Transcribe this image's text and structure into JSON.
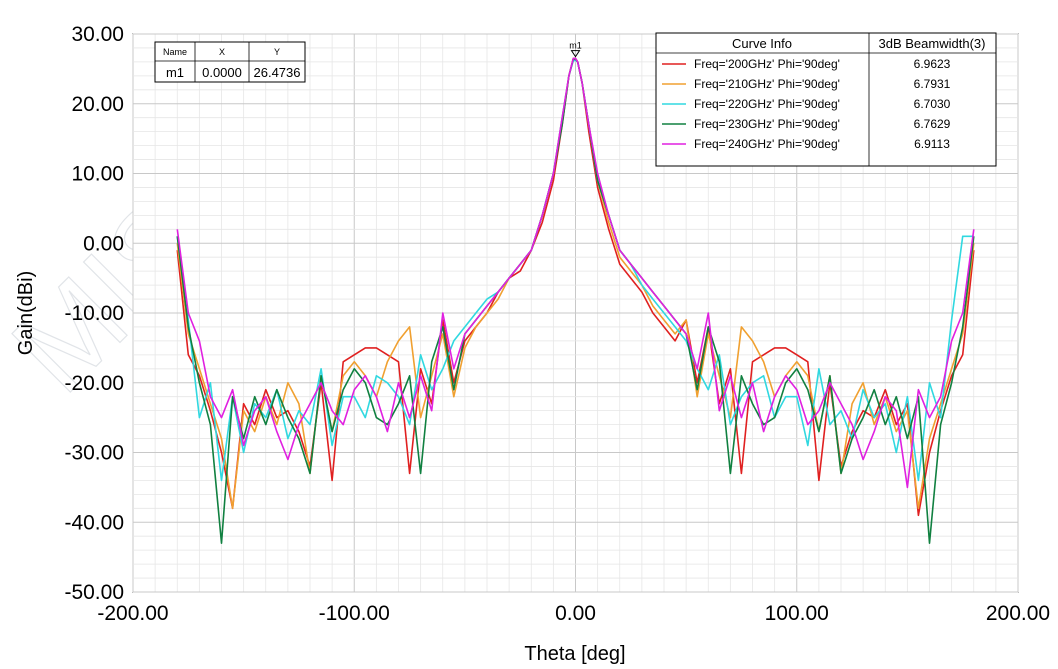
{
  "chart_data": {
    "type": "line",
    "title": "",
    "xlabel": "Theta [deg]",
    "ylabel": "Gain(dBi)",
    "xlim": [
      -200,
      200
    ],
    "ylim": [
      -50,
      30
    ],
    "x_ticks": [
      "-200.00",
      "-100.00",
      "0.00",
      "100.00",
      "200.00"
    ],
    "y_ticks": [
      "30.00",
      "20.00",
      "10.00",
      "0.00",
      "-10.00",
      "-20.00",
      "-30.00",
      "-40.00",
      "-50.00"
    ],
    "grid": true,
    "legend_position": "top-right",
    "legend": {
      "header_curve": "Curve Info",
      "header_value": "3dB Beamwidth(3)"
    },
    "series": [
      {
        "name": "Freq='200GHz' Phi='90deg'",
        "beamwidth": "6.9623",
        "color": "#e02020",
        "x": [
          -180,
          -175,
          -170,
          -165,
          -160,
          -155,
          -150,
          -145,
          -140,
          -135,
          -130,
          -125,
          -120,
          -115,
          -110,
          -105,
          -100,
          -95,
          -90,
          -85,
          -80,
          -75,
          -70,
          -65,
          -60,
          -55,
          -50,
          -45,
          -40,
          -35,
          -30,
          -25,
          -20,
          -15,
          -10,
          -6,
          -3,
          -1,
          0,
          1,
          3,
          6,
          10,
          15,
          20,
          25,
          30,
          35,
          40,
          45,
          50,
          55,
          60,
          65,
          70,
          75,
          80,
          85,
          90,
          95,
          100,
          105,
          110,
          115,
          120,
          125,
          130,
          135,
          140,
          145,
          150,
          155,
          160,
          165,
          170,
          175,
          180
        ],
        "y": [
          -1,
          -16,
          -19,
          -24,
          -30,
          -38,
          -23,
          -26,
          -21,
          -25,
          -24,
          -27,
          -32,
          -20,
          -34,
          -17,
          -16,
          -15,
          -15,
          -16,
          -17,
          -33,
          -18,
          -23,
          -11,
          -20,
          -14,
          -12,
          -10,
          -7,
          -5,
          -4,
          -1,
          3,
          9,
          17,
          24,
          26.5,
          26.5,
          26,
          23,
          16,
          8,
          2,
          -3,
          -5,
          -7,
          -10,
          -12,
          -14,
          -11,
          -20,
          -12,
          -23,
          -18,
          -33,
          -17,
          -16,
          -15,
          -15,
          -16,
          -17,
          -34,
          -20,
          -32,
          -27,
          -24,
          -25,
          -21,
          -26,
          -23,
          -39,
          -30,
          -24,
          -19,
          -16,
          -1
        ]
      },
      {
        "name": "Freq='210GHz' Phi='90deg'",
        "beamwidth": "6.7931",
        "color": "#f0a030",
        "x": [
          -180,
          -175,
          -170,
          -165,
          -160,
          -155,
          -150,
          -145,
          -140,
          -135,
          -130,
          -125,
          -120,
          -115,
          -110,
          -105,
          -100,
          -95,
          -90,
          -85,
          -80,
          -75,
          -70,
          -65,
          -60,
          -55,
          -50,
          -45,
          -40,
          -35,
          -30,
          -25,
          -20,
          -15,
          -10,
          -6,
          -3,
          -1,
          0,
          1,
          3,
          6,
          10,
          15,
          20,
          25,
          30,
          35,
          40,
          45,
          50,
          55,
          60,
          65,
          70,
          75,
          80,
          85,
          90,
          95,
          100,
          105,
          110,
          115,
          120,
          125,
          130,
          135,
          140,
          145,
          150,
          155,
          160,
          165,
          170,
          175,
          180
        ],
        "y": [
          0,
          -13,
          -18,
          -23,
          -28,
          -38,
          -24,
          -27,
          -22,
          -26,
          -20,
          -23,
          -33,
          -19,
          -27,
          -19,
          -17,
          -19,
          -22,
          -17,
          -14,
          -12,
          -25,
          -19,
          -13,
          -22,
          -15,
          -12,
          -10,
          -8,
          -5,
          -3,
          -1,
          4,
          10,
          18,
          24,
          26.3,
          26.3,
          26,
          23,
          17,
          9,
          3,
          -2,
          -4,
          -6,
          -9,
          -11,
          -13,
          -11,
          -22,
          -13,
          -19,
          -25,
          -12,
          -14,
          -17,
          -22,
          -19,
          -17,
          -19,
          -27,
          -19,
          -33,
          -23,
          -20,
          -26,
          -22,
          -27,
          -24,
          -38,
          -28,
          -23,
          -18,
          -13,
          0
        ]
      },
      {
        "name": "Freq='220GHz' Phi='90deg'",
        "beamwidth": "6.7030",
        "color": "#30d8e0",
        "x": [
          -180,
          -175,
          -170,
          -165,
          -160,
          -155,
          -150,
          -145,
          -140,
          -135,
          -130,
          -125,
          -120,
          -115,
          -110,
          -105,
          -100,
          -95,
          -90,
          -85,
          -80,
          -75,
          -70,
          -65,
          -60,
          -55,
          -50,
          -45,
          -40,
          -35,
          -30,
          -25,
          -20,
          -15,
          -10,
          -6,
          -3,
          -1,
          0,
          1,
          3,
          6,
          10,
          15,
          20,
          25,
          30,
          35,
          40,
          45,
          50,
          55,
          60,
          65,
          70,
          75,
          80,
          85,
          90,
          95,
          100,
          105,
          110,
          115,
          120,
          125,
          130,
          135,
          140,
          145,
          150,
          155,
          160,
          165,
          170,
          175,
          180
        ],
        "y": [
          1,
          -11,
          -25,
          -20,
          -34,
          -22,
          -30,
          -23,
          -25,
          -21,
          -28,
          -24,
          -26,
          -18,
          -29,
          -22,
          -22,
          -25,
          -19,
          -20,
          -22,
          -26,
          -16,
          -21,
          -18,
          -14,
          -12,
          -10,
          -8,
          -7,
          -5,
          -3,
          -1,
          4,
          10,
          18,
          24,
          26.2,
          26.2,
          26,
          23,
          17,
          9,
          4,
          -1,
          -3,
          -6,
          -8,
          -10,
          -12,
          -14,
          -18,
          -21,
          -16,
          -26,
          -22,
          -20,
          -19,
          -25,
          -22,
          -22,
          -29,
          -18,
          -26,
          -24,
          -28,
          -21,
          -25,
          -23,
          -30,
          -22,
          -34,
          -20,
          -25,
          -11,
          1,
          1
        ]
      },
      {
        "name": "Freq='230GHz' Phi='90deg'",
        "beamwidth": "6.7629",
        "color": "#108040",
        "x": [
          -180,
          -175,
          -170,
          -165,
          -160,
          -155,
          -150,
          -145,
          -140,
          -135,
          -130,
          -125,
          -120,
          -115,
          -110,
          -105,
          -100,
          -95,
          -90,
          -85,
          -80,
          -75,
          -70,
          -65,
          -60,
          -55,
          -50,
          -45,
          -40,
          -35,
          -30,
          -25,
          -20,
          -15,
          -10,
          -6,
          -3,
          -1,
          0,
          1,
          3,
          6,
          10,
          15,
          20,
          25,
          30,
          35,
          40,
          45,
          50,
          55,
          60,
          65,
          70,
          75,
          80,
          85,
          90,
          95,
          100,
          105,
          110,
          115,
          120,
          125,
          130,
          135,
          140,
          145,
          150,
          155,
          160,
          165,
          170,
          175,
          180
        ],
        "y": [
          1,
          -12,
          -20,
          -26,
          -43,
          -22,
          -28,
          -22,
          -26,
          -21,
          -25,
          -28,
          -33,
          -19,
          -27,
          -21,
          -18,
          -20,
          -25,
          -26,
          -23,
          -19,
          -33,
          -17,
          -12,
          -21,
          -13,
          -11,
          -9,
          -7,
          -5,
          -3,
          -1,
          4,
          10,
          17,
          24,
          26.4,
          26.4,
          26,
          23,
          17,
          9,
          4,
          -1,
          -3,
          -5,
          -7,
          -9,
          -11,
          -13,
          -21,
          -12,
          -17,
          -33,
          -19,
          -23,
          -26,
          -25,
          -20,
          -18,
          -21,
          -27,
          -19,
          -33,
          -28,
          -25,
          -21,
          -26,
          -22,
          -28,
          -22,
          -43,
          -26,
          -20,
          -12,
          1
        ]
      },
      {
        "name": "Freq='240GHz' Phi='90deg'",
        "beamwidth": "6.9113",
        "color": "#e020e0",
        "x": [
          -180,
          -175,
          -170,
          -165,
          -160,
          -155,
          -150,
          -145,
          -140,
          -135,
          -130,
          -125,
          -120,
          -115,
          -110,
          -105,
          -100,
          -95,
          -90,
          -85,
          -80,
          -75,
          -70,
          -65,
          -60,
          -55,
          -50,
          -45,
          -40,
          -35,
          -30,
          -25,
          -20,
          -15,
          -10,
          -6,
          -3,
          -1,
          0,
          1,
          3,
          6,
          10,
          15,
          20,
          25,
          30,
          35,
          40,
          45,
          50,
          55,
          60,
          65,
          70,
          75,
          80,
          85,
          90,
          95,
          100,
          105,
          110,
          115,
          120,
          125,
          130,
          135,
          140,
          145,
          150,
          155,
          160,
          165,
          170,
          175,
          180
        ],
        "y": [
          2,
          -10,
          -14,
          -22,
          -25,
          -21,
          -29,
          -24,
          -22,
          -27,
          -31,
          -26,
          -23,
          -20,
          -24,
          -26,
          -21,
          -19,
          -22,
          -27,
          -20,
          -25,
          -19,
          -24,
          -10,
          -18,
          -13,
          -11,
          -9,
          -7,
          -5,
          -3,
          -1,
          4,
          10,
          18,
          24,
          26.5,
          26.5,
          26,
          23,
          17,
          10,
          4,
          -1,
          -3,
          -5,
          -7,
          -9,
          -11,
          -13,
          -18,
          -10,
          -24,
          -19,
          -25,
          -20,
          -27,
          -22,
          -19,
          -21,
          -26,
          -24,
          -20,
          -23,
          -26,
          -31,
          -27,
          -22,
          -24,
          -35,
          -21,
          -25,
          -22,
          -14,
          -10,
          2
        ]
      }
    ],
    "marker": {
      "label": "m1",
      "x": 0,
      "y": 26.4736,
      "table_headers": [
        "Name",
        "X",
        "Y"
      ],
      "table_row": [
        "m1",
        "0.0000",
        "26.4736"
      ]
    }
  }
}
